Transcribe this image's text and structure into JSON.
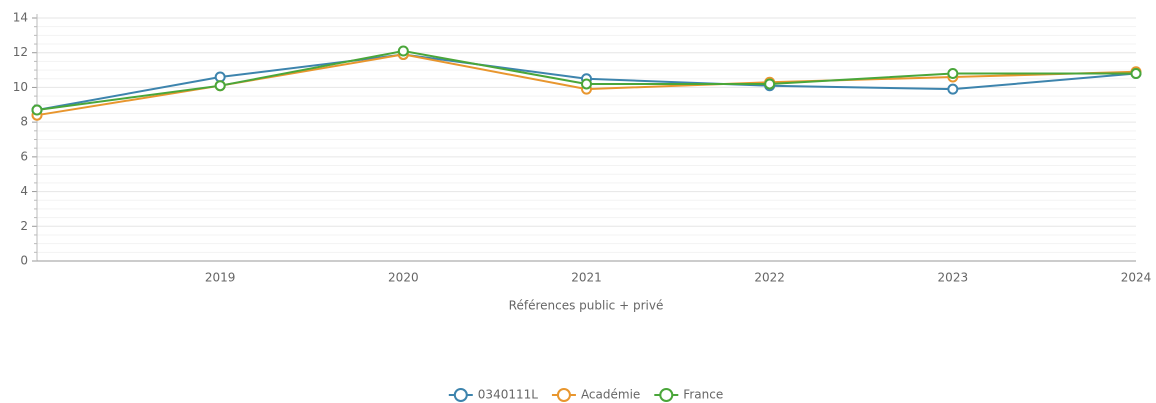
{
  "chart_data": {
    "type": "line",
    "x_label": "Références public + privé",
    "categories": [
      null,
      "2019",
      "2020",
      "2021",
      "2022",
      "2023",
      "2024"
    ],
    "series": [
      {
        "name": "0340111L",
        "color": "#3d84ad",
        "values": [
          8.7,
          10.6,
          11.9,
          10.5,
          10.1,
          9.9,
          10.8
        ]
      },
      {
        "name": "Académie",
        "color": "#e8962e",
        "values": [
          8.4,
          10.1,
          11.9,
          9.9,
          10.3,
          10.6,
          10.9
        ]
      },
      {
        "name": "France",
        "color": "#4aa63a",
        "values": [
          8.7,
          10.1,
          12.1,
          10.2,
          10.2,
          10.8,
          10.8
        ]
      }
    ],
    "ylim": [
      0,
      14
    ],
    "yticks": [
      0,
      2,
      4,
      6,
      8,
      10,
      12,
      14
    ],
    "grid": true,
    "legend": "bottom"
  }
}
